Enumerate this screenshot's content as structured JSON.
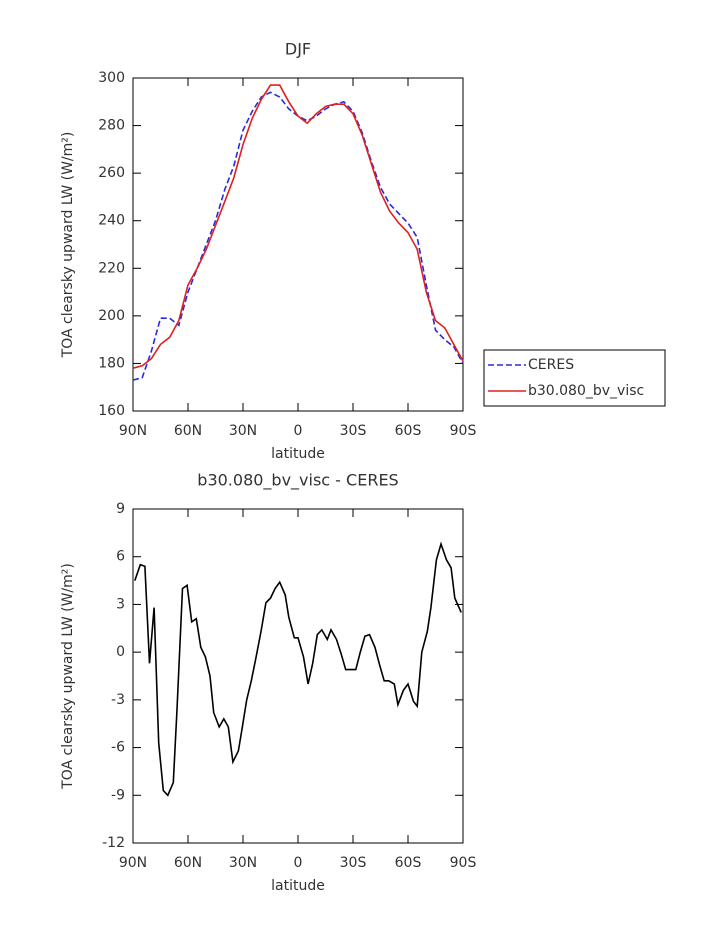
{
  "chart_data": [
    {
      "type": "line",
      "title": "DJF",
      "xlabel": "latitude",
      "ylabel": "TOA clearsky upward LW (W/m²)",
      "x": [
        90,
        85,
        80,
        75,
        70,
        65,
        60,
        55,
        50,
        45,
        40,
        35,
        30,
        25,
        20,
        15,
        10,
        5,
        0,
        -5,
        -10,
        -15,
        -20,
        -25,
        -30,
        -35,
        -40,
        -45,
        -50,
        -55,
        -60,
        -65,
        -70,
        -75,
        -80,
        -85,
        -90
      ],
      "series": [
        {
          "name": "CERES",
          "color": "#2a2ae0",
          "linestyle": "dashed",
          "values": [
            173,
            174,
            185,
            199,
            199,
            196,
            210,
            220,
            230,
            240,
            253,
            263,
            278,
            286,
            292,
            294,
            292,
            287,
            284,
            282,
            284,
            287,
            289,
            290,
            286,
            277,
            265,
            254,
            247,
            243,
            239,
            233,
            213,
            194,
            190,
            187,
            180
          ]
        },
        {
          "name": "b30.080_bv_visc",
          "color": "#e0201e",
          "linestyle": "solid",
          "values": [
            178,
            179,
            182,
            188,
            191,
            198,
            213,
            220,
            228,
            238,
            248,
            258,
            272,
            283,
            291,
            297,
            297,
            290,
            284,
            281,
            285,
            288,
            289,
            289,
            285,
            276,
            264,
            252,
            244,
            239,
            235,
            228,
            210,
            198,
            195,
            188,
            181
          ]
        }
      ],
      "xlim": [
        90,
        -90
      ],
      "xticks": [
        {
          "value": 90,
          "label": "90N"
        },
        {
          "value": 60,
          "label": "60N"
        },
        {
          "value": 30,
          "label": "30N"
        },
        0,
        {
          "value": -30,
          "label": "30S"
        },
        {
          "value": -60,
          "label": "60S"
        },
        {
          "value": -90,
          "label": "90S"
        }
      ],
      "ylim": [
        160,
        300
      ],
      "yticks": [
        160,
        180,
        200,
        220,
        240,
        260,
        280,
        300
      ],
      "legend": "right"
    },
    {
      "type": "line",
      "title": "b30.080_bv_visc - CERES",
      "xlabel": "latitude",
      "ylabel": "TOA clearsky upward LW (W/m²)",
      "x": [
        89,
        86,
        83.5,
        81,
        78.5,
        76,
        73.5,
        71,
        68,
        66,
        63,
        60.5,
        58,
        55.5,
        53,
        50.5,
        48,
        46,
        43,
        40.5,
        38,
        35.5,
        32.5,
        30.5,
        28,
        25.5,
        23,
        20,
        17.5,
        15,
        12.5,
        10,
        7,
        5,
        2,
        0,
        -3,
        -5.5,
        -8,
        -10.5,
        -13,
        -16,
        -18,
        -21,
        -23.5,
        -26,
        -29,
        -31.5,
        -34,
        -36.5,
        -39,
        -42,
        -44.5,
        -47,
        -49.5,
        -52.5,
        -54.5,
        -57.5,
        -60,
        -63,
        -65,
        -67.5,
        -70.5,
        -72.5,
        -75.5,
        -78,
        -81,
        -83.5,
        -85.5,
        -89
      ],
      "values": [
        4.5,
        5.5,
        5.4,
        -0.7,
        2.8,
        -5.7,
        -8.7,
        -9.0,
        -8.2,
        -3.6,
        4.0,
        4.2,
        1.9,
        2.1,
        0.3,
        -0.3,
        -1.5,
        -3.8,
        -4.7,
        -4.2,
        -4.7,
        -6.9,
        -6.2,
        -4.8,
        -3.0,
        -1.8,
        -0.4,
        1.4,
        3.1,
        3.4,
        4.0,
        4.4,
        3.6,
        2.2,
        0.9,
        0.9,
        -0.3,
        -2.0,
        -0.7,
        1.1,
        1.4,
        0.8,
        1.4,
        0.8,
        -0.1,
        -1.1,
        -1.1,
        -1.1,
        0.0,
        1.0,
        1.1,
        0.3,
        -0.8,
        -1.8,
        -1.8,
        -2.0,
        -3.3,
        -2.4,
        -2.0,
        -3.1,
        -3.4,
        0.0,
        1.3,
        2.8,
        5.8,
        6.8,
        5.8,
        5.3,
        3.4,
        2.5
      ],
      "color": "#000000",
      "xlim": [
        90,
        -90
      ],
      "xticks": [
        {
          "value": 90,
          "label": "90N"
        },
        {
          "value": 60,
          "label": "60N"
        },
        {
          "value": 30,
          "label": "30N"
        },
        0,
        {
          "value": -30,
          "label": "30S"
        },
        {
          "value": -60,
          "label": "60S"
        },
        {
          "value": -90,
          "label": "90S"
        }
      ],
      "ylim": [
        -12,
        9
      ],
      "yticks": [
        -12,
        -9,
        -6,
        -3,
        0,
        3,
        6,
        9
      ]
    }
  ]
}
